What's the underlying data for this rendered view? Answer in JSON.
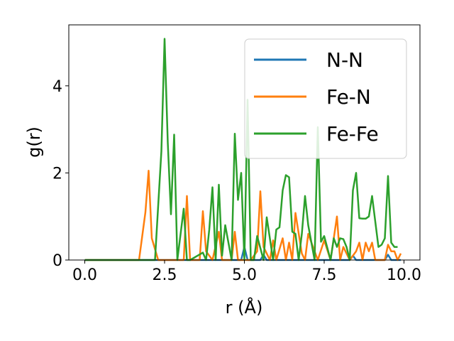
{
  "chart_data": {
    "type": "line",
    "title": "",
    "xlabel": "r (Å)",
    "ylabel": "g(r)",
    "xlim": [
      -0.5,
      10.5
    ],
    "ylim": [
      0,
      5.4
    ],
    "xticks": [
      "0.0",
      "2.5",
      "5.0",
      "7.5",
      "10.0"
    ],
    "xtick_values": [
      0,
      2.5,
      5,
      7.5,
      10
    ],
    "yticks": [
      "0",
      "2",
      "4"
    ],
    "ytick_values": [
      0,
      2,
      4
    ],
    "grid": false,
    "legend_position": "top-right",
    "series": [
      {
        "name": "N-N",
        "color": "#1f77b4",
        "x": [
          0,
          4.9,
          5.0,
          5.1,
          5.5,
          5.6,
          5.7,
          8.3,
          8.4,
          8.5,
          9.4,
          9.5,
          9.6,
          9.9
        ],
        "y": [
          0,
          0,
          0.3,
          0,
          0,
          0.12,
          0,
          0,
          0.1,
          0,
          0,
          0.12,
          0,
          0
        ]
      },
      {
        "name": "Fe-N",
        "color": "#ff7f0e",
        "x": [
          0,
          1.7,
          1.9,
          2.0,
          2.1,
          2.3,
          3.1,
          3.2,
          3.3,
          3.6,
          3.7,
          3.8,
          4.0,
          4.2,
          4.3,
          4.6,
          4.7,
          4.8,
          5.2,
          5.4,
          5.5,
          5.6,
          5.8,
          5.9,
          6.0,
          6.2,
          6.3,
          6.4,
          6.5,
          6.6,
          6.8,
          6.9,
          7.0,
          7.3,
          7.5,
          7.7,
          7.8,
          7.9,
          8.0,
          8.1,
          8.3,
          8.5,
          8.6,
          8.7,
          8.8,
          8.9,
          9.0,
          9.1,
          9.4,
          9.5,
          9.6,
          9.7,
          9.8,
          9.9
        ],
        "y": [
          0,
          0,
          1.1,
          2.05,
          0.5,
          0,
          0,
          1.47,
          0,
          0,
          1.12,
          0.2,
          0,
          0.65,
          0,
          0,
          0.65,
          0,
          0,
          0.2,
          1.58,
          0.3,
          0,
          0.45,
          0,
          0.5,
          0,
          0.4,
          0,
          1.08,
          0.15,
          0,
          0.6,
          0,
          0.45,
          0,
          0.5,
          1.0,
          0,
          0.3,
          0,
          0.2,
          0.4,
          0,
          0.4,
          0.2,
          0.4,
          0,
          0,
          0.35,
          0.2,
          0.2,
          0,
          0.15
        ]
      },
      {
        "name": "Fe-Fe",
        "color": "#2ca02c",
        "x": [
          0,
          2.2,
          2.4,
          2.5,
          2.6,
          2.7,
          2.8,
          2.9,
          3.1,
          3.2,
          3.3,
          3.7,
          3.8,
          3.9,
          4.0,
          4.1,
          4.2,
          4.3,
          4.4,
          4.6,
          4.7,
          4.8,
          4.9,
          5.0,
          5.1,
          5.2,
          5.3,
          5.4,
          5.6,
          5.7,
          5.9,
          6.0,
          6.1,
          6.2,
          6.3,
          6.4,
          6.5,
          6.6,
          6.7,
          6.8,
          6.9,
          7.0,
          7.1,
          7.2,
          7.3,
          7.4,
          7.5,
          7.7,
          7.8,
          7.9,
          8.0,
          8.1,
          8.2,
          8.3,
          8.4,
          8.5,
          8.6,
          8.7,
          8.8,
          8.9,
          9.0,
          9.2,
          9.3,
          9.4,
          9.5,
          9.6,
          9.7,
          9.8
        ],
        "y": [
          0,
          0,
          2.5,
          5.08,
          2.7,
          1.05,
          2.88,
          0,
          1.18,
          0,
          0,
          0.17,
          0,
          0.7,
          1.67,
          0,
          1.73,
          0.1,
          0.8,
          0,
          2.9,
          1.38,
          2.0,
          0,
          3.68,
          0,
          0,
          0.55,
          0,
          0.98,
          0,
          0.7,
          0.75,
          1.6,
          1.95,
          1.9,
          0.65,
          0.6,
          0,
          0.6,
          1.47,
          0.8,
          0.4,
          0,
          3.05,
          0.42,
          0.55,
          0,
          0.5,
          0.3,
          0.5,
          0.48,
          0.3,
          0,
          1.6,
          2.0,
          0.96,
          0.95,
          0.95,
          1.0,
          1.47,
          0.3,
          0.35,
          0.5,
          1.93,
          0.4,
          0.3,
          0.3
        ]
      }
    ]
  }
}
